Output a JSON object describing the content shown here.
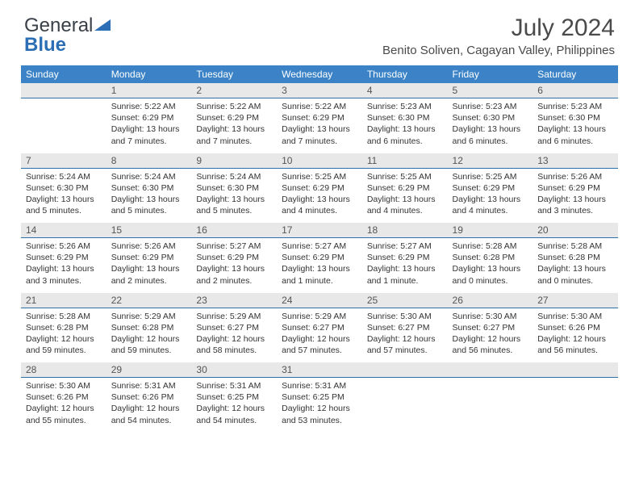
{
  "logo": {
    "part1": "General",
    "part2": "Blue"
  },
  "title": {
    "month_year": "July 2024",
    "location": "Benito Soliven, Cagayan Valley, Philippines"
  },
  "colors": {
    "header_bg": "#3b83c6",
    "header_text": "#ffffff",
    "daynum_bg": "#e8e8e8",
    "daynum_border": "#2d6fa8",
    "logo_gray": "#5a6068",
    "logo_blue": "#2d6fb5",
    "title_color": "#4a4a4a"
  },
  "day_labels": [
    "Sunday",
    "Monday",
    "Tuesday",
    "Wednesday",
    "Thursday",
    "Friday",
    "Saturday"
  ],
  "weeks": [
    [
      null,
      {
        "n": "1",
        "sr": "5:22 AM",
        "ss": "6:29 PM",
        "dl": "13 hours and 7 minutes."
      },
      {
        "n": "2",
        "sr": "5:22 AM",
        "ss": "6:29 PM",
        "dl": "13 hours and 7 minutes."
      },
      {
        "n": "3",
        "sr": "5:22 AM",
        "ss": "6:29 PM",
        "dl": "13 hours and 7 minutes."
      },
      {
        "n": "4",
        "sr": "5:23 AM",
        "ss": "6:30 PM",
        "dl": "13 hours and 6 minutes."
      },
      {
        "n": "5",
        "sr": "5:23 AM",
        "ss": "6:30 PM",
        "dl": "13 hours and 6 minutes."
      },
      {
        "n": "6",
        "sr": "5:23 AM",
        "ss": "6:30 PM",
        "dl": "13 hours and 6 minutes."
      }
    ],
    [
      {
        "n": "7",
        "sr": "5:24 AM",
        "ss": "6:30 PM",
        "dl": "13 hours and 5 minutes."
      },
      {
        "n": "8",
        "sr": "5:24 AM",
        "ss": "6:30 PM",
        "dl": "13 hours and 5 minutes."
      },
      {
        "n": "9",
        "sr": "5:24 AM",
        "ss": "6:30 PM",
        "dl": "13 hours and 5 minutes."
      },
      {
        "n": "10",
        "sr": "5:25 AM",
        "ss": "6:29 PM",
        "dl": "13 hours and 4 minutes."
      },
      {
        "n": "11",
        "sr": "5:25 AM",
        "ss": "6:29 PM",
        "dl": "13 hours and 4 minutes."
      },
      {
        "n": "12",
        "sr": "5:25 AM",
        "ss": "6:29 PM",
        "dl": "13 hours and 4 minutes."
      },
      {
        "n": "13",
        "sr": "5:26 AM",
        "ss": "6:29 PM",
        "dl": "13 hours and 3 minutes."
      }
    ],
    [
      {
        "n": "14",
        "sr": "5:26 AM",
        "ss": "6:29 PM",
        "dl": "13 hours and 3 minutes."
      },
      {
        "n": "15",
        "sr": "5:26 AM",
        "ss": "6:29 PM",
        "dl": "13 hours and 2 minutes."
      },
      {
        "n": "16",
        "sr": "5:27 AM",
        "ss": "6:29 PM",
        "dl": "13 hours and 2 minutes."
      },
      {
        "n": "17",
        "sr": "5:27 AM",
        "ss": "6:29 PM",
        "dl": "13 hours and 1 minute."
      },
      {
        "n": "18",
        "sr": "5:27 AM",
        "ss": "6:29 PM",
        "dl": "13 hours and 1 minute."
      },
      {
        "n": "19",
        "sr": "5:28 AM",
        "ss": "6:28 PM",
        "dl": "13 hours and 0 minutes."
      },
      {
        "n": "20",
        "sr": "5:28 AM",
        "ss": "6:28 PM",
        "dl": "13 hours and 0 minutes."
      }
    ],
    [
      {
        "n": "21",
        "sr": "5:28 AM",
        "ss": "6:28 PM",
        "dl": "12 hours and 59 minutes."
      },
      {
        "n": "22",
        "sr": "5:29 AM",
        "ss": "6:28 PM",
        "dl": "12 hours and 59 minutes."
      },
      {
        "n": "23",
        "sr": "5:29 AM",
        "ss": "6:27 PM",
        "dl": "12 hours and 58 minutes."
      },
      {
        "n": "24",
        "sr": "5:29 AM",
        "ss": "6:27 PM",
        "dl": "12 hours and 57 minutes."
      },
      {
        "n": "25",
        "sr": "5:30 AM",
        "ss": "6:27 PM",
        "dl": "12 hours and 57 minutes."
      },
      {
        "n": "26",
        "sr": "5:30 AM",
        "ss": "6:27 PM",
        "dl": "12 hours and 56 minutes."
      },
      {
        "n": "27",
        "sr": "5:30 AM",
        "ss": "6:26 PM",
        "dl": "12 hours and 56 minutes."
      }
    ],
    [
      {
        "n": "28",
        "sr": "5:30 AM",
        "ss": "6:26 PM",
        "dl": "12 hours and 55 minutes."
      },
      {
        "n": "29",
        "sr": "5:31 AM",
        "ss": "6:26 PM",
        "dl": "12 hours and 54 minutes."
      },
      {
        "n": "30",
        "sr": "5:31 AM",
        "ss": "6:25 PM",
        "dl": "12 hours and 54 minutes."
      },
      {
        "n": "31",
        "sr": "5:31 AM",
        "ss": "6:25 PM",
        "dl": "12 hours and 53 minutes."
      },
      null,
      null,
      null
    ]
  ],
  "labels": {
    "sunrise": "Sunrise:",
    "sunset": "Sunset:",
    "daylight": "Daylight:"
  }
}
